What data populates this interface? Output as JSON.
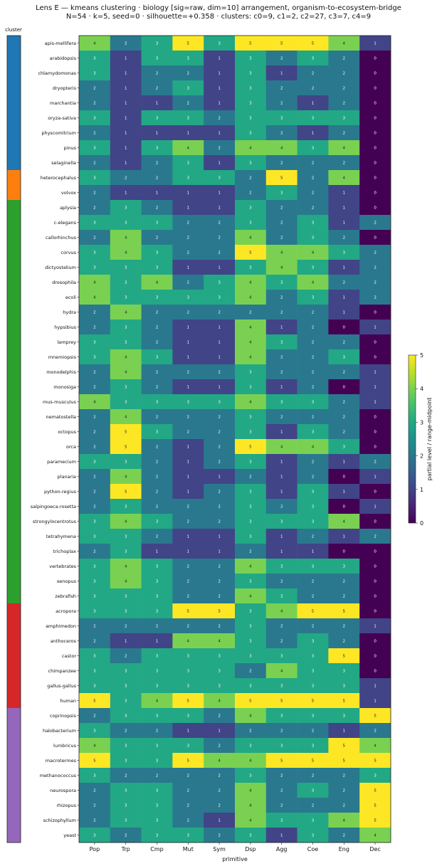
{
  "chart_data": {
    "type": "heatmap",
    "title": "Lens E — kmeans clustering · biology [sig=raw, dim=10] arrangement, organism-to-ecosystem-bridge",
    "subtitle": "N=54 · k=5, seed=0 · silhouette=+0.358 · clusters: c0=9, c1=2, c2=27, c3=7, c4=9",
    "xlabel": "primitive",
    "cluster_label": "cluster",
    "colorbar_label": "partial level / range-midpoint",
    "colorbar_ticks": [
      "0",
      "1",
      "2",
      "3",
      "4",
      "5"
    ],
    "vmin": 0,
    "vmax": 5,
    "colormap": "viridis",
    "columns": [
      "Pop",
      "Trp",
      "Cmp",
      "Mut",
      "Sym",
      "Dsp",
      "Agg",
      "Coe",
      "Eng",
      "Dec"
    ],
    "cluster_colors": [
      "#1f77b4",
      "#ff7f0e",
      "#2ca02c",
      "#d62728",
      "#9467bd"
    ],
    "rows": [
      {
        "name": "apis-mellifera",
        "cluster": 0,
        "values": [
          4,
          2,
          3,
          5,
          3,
          5,
          5,
          5,
          4,
          1
        ]
      },
      {
        "name": "arabidopsis",
        "cluster": 0,
        "values": [
          3,
          1,
          3,
          3,
          1,
          3,
          2,
          3,
          2,
          0
        ]
      },
      {
        "name": "chlamydomonas",
        "cluster": 0,
        "values": [
          3,
          1,
          2,
          2,
          1,
          3,
          1,
          2,
          2,
          0
        ]
      },
      {
        "name": "dryopteris",
        "cluster": 0,
        "values": [
          2,
          1,
          2,
          3,
          1,
          3,
          2,
          2,
          2,
          0
        ]
      },
      {
        "name": "marchantia",
        "cluster": 0,
        "values": [
          2,
          1,
          1,
          2,
          1,
          3,
          2,
          1,
          2,
          0
        ]
      },
      {
        "name": "oryza-sativa",
        "cluster": 0,
        "values": [
          3,
          1,
          3,
          3,
          2,
          3,
          3,
          3,
          3,
          0
        ]
      },
      {
        "name": "physcomitrium",
        "cluster": 0,
        "values": [
          2,
          1,
          1,
          1,
          1,
          3,
          2,
          1,
          2,
          0
        ]
      },
      {
        "name": "pinus",
        "cluster": 0,
        "values": [
          3,
          1,
          3,
          4,
          2,
          4,
          4,
          3,
          4,
          0
        ]
      },
      {
        "name": "selaginella",
        "cluster": 0,
        "values": [
          2,
          1,
          2,
          3,
          1,
          3,
          2,
          2,
          2,
          0
        ]
      },
      {
        "name": "heterocephalus",
        "cluster": 1,
        "values": [
          3,
          2,
          2,
          3,
          3,
          2,
          5,
          2,
          4,
          0
        ]
      },
      {
        "name": "volvox",
        "cluster": 1,
        "values": [
          2,
          1,
          1,
          1,
          1,
          2,
          3,
          2,
          1,
          0
        ]
      },
      {
        "name": "aplysia",
        "cluster": 2,
        "values": [
          2,
          3,
          2,
          1,
          1,
          3,
          2,
          2,
          1,
          0
        ]
      },
      {
        "name": "c-elegans",
        "cluster": 2,
        "values": [
          3,
          3,
          3,
          2,
          2,
          3,
          2,
          3,
          1,
          2
        ]
      },
      {
        "name": "callorhinchus",
        "cluster": 2,
        "values": [
          2,
          4,
          2,
          2,
          2,
          4,
          2,
          3,
          2,
          0
        ]
      },
      {
        "name": "corvus",
        "cluster": 2,
        "values": [
          3,
          4,
          3,
          2,
          2,
          5,
          4,
          4,
          3,
          2
        ]
      },
      {
        "name": "dictyostelium",
        "cluster": 2,
        "values": [
          3,
          3,
          3,
          1,
          1,
          3,
          4,
          3,
          1,
          2
        ]
      },
      {
        "name": "drosophila",
        "cluster": 2,
        "values": [
          4,
          3,
          4,
          2,
          3,
          4,
          3,
          4,
          2,
          2
        ]
      },
      {
        "name": "ecoli",
        "cluster": 2,
        "values": [
          4,
          3,
          3,
          3,
          3,
          4,
          2,
          3,
          1,
          2
        ]
      },
      {
        "name": "hydra",
        "cluster": 2,
        "values": [
          2,
          4,
          2,
          2,
          2,
          2,
          2,
          2,
          1,
          0
        ]
      },
      {
        "name": "hypsibius",
        "cluster": 2,
        "values": [
          2,
          3,
          2,
          1,
          1,
          4,
          1,
          2,
          0,
          1
        ]
      },
      {
        "name": "lamprey",
        "cluster": 2,
        "values": [
          3,
          3,
          2,
          1,
          1,
          4,
          3,
          2,
          2,
          0
        ]
      },
      {
        "name": "mnemiopsis",
        "cluster": 2,
        "values": [
          3,
          4,
          3,
          1,
          1,
          4,
          2,
          2,
          3,
          0
        ]
      },
      {
        "name": "monodelphis",
        "cluster": 2,
        "values": [
          2,
          4,
          2,
          2,
          2,
          3,
          2,
          2,
          2,
          1
        ]
      },
      {
        "name": "monosiga",
        "cluster": 2,
        "values": [
          2,
          3,
          2,
          1,
          1,
          3,
          1,
          2,
          0,
          1
        ]
      },
      {
        "name": "mus-musculus",
        "cluster": 2,
        "values": [
          4,
          3,
          3,
          3,
          3,
          4,
          3,
          3,
          2,
          1
        ]
      },
      {
        "name": "nematostella",
        "cluster": 2,
        "values": [
          2,
          4,
          2,
          2,
          2,
          3,
          2,
          2,
          2,
          0
        ]
      },
      {
        "name": "octopus",
        "cluster": 2,
        "values": [
          2,
          5,
          3,
          2,
          2,
          3,
          1,
          3,
          2,
          0
        ]
      },
      {
        "name": "orca",
        "cluster": 2,
        "values": [
          2,
          5,
          2,
          1,
          2,
          5,
          4,
          4,
          3,
          0
        ]
      },
      {
        "name": "paramecium",
        "cluster": 2,
        "values": [
          3,
          3,
          2,
          1,
          2,
          3,
          1,
          2,
          1,
          2
        ]
      },
      {
        "name": "planaria",
        "cluster": 2,
        "values": [
          2,
          4,
          2,
          1,
          1,
          2,
          1,
          2,
          0,
          1
        ]
      },
      {
        "name": "python-regius",
        "cluster": 2,
        "values": [
          2,
          5,
          2,
          1,
          2,
          3,
          1,
          3,
          1,
          0
        ]
      },
      {
        "name": "salpingoeca-rosetta",
        "cluster": 2,
        "values": [
          2,
          3,
          2,
          2,
          2,
          3,
          2,
          3,
          0,
          1
        ]
      },
      {
        "name": "strongylocentrotus",
        "cluster": 2,
        "values": [
          3,
          4,
          3,
          2,
          2,
          3,
          3,
          3,
          4,
          0
        ]
      },
      {
        "name": "tetrahymena",
        "cluster": 2,
        "values": [
          3,
          3,
          2,
          1,
          1,
          3,
          1,
          2,
          1,
          2
        ]
      },
      {
        "name": "trichoplax",
        "cluster": 2,
        "values": [
          2,
          3,
          1,
          1,
          1,
          2,
          1,
          1,
          0,
          0
        ]
      },
      {
        "name": "vertebrates",
        "cluster": 2,
        "values": [
          3,
          4,
          3,
          2,
          2,
          4,
          3,
          3,
          3,
          0
        ]
      },
      {
        "name": "xenopus",
        "cluster": 2,
        "values": [
          3,
          4,
          3,
          2,
          2,
          3,
          2,
          2,
          2,
          0
        ]
      },
      {
        "name": "zebrafish",
        "cluster": 2,
        "values": [
          3,
          3,
          3,
          2,
          2,
          4,
          3,
          2,
          2,
          0
        ]
      },
      {
        "name": "acropora",
        "cluster": 3,
        "values": [
          3,
          3,
          3,
          5,
          5,
          3,
          4,
          5,
          5,
          0
        ]
      },
      {
        "name": "amphimedon",
        "cluster": 3,
        "values": [
          2,
          2,
          2,
          2,
          2,
          3,
          2,
          2,
          2,
          1
        ]
      },
      {
        "name": "anthoceros",
        "cluster": 3,
        "values": [
          2,
          1,
          1,
          4,
          4,
          3,
          2,
          3,
          2,
          0
        ]
      },
      {
        "name": "castor",
        "cluster": 3,
        "values": [
          3,
          2,
          3,
          3,
          3,
          3,
          3,
          3,
          5,
          0
        ]
      },
      {
        "name": "chimpanzee",
        "cluster": 3,
        "values": [
          3,
          3,
          3,
          3,
          3,
          2,
          4,
          3,
          3,
          0
        ]
      },
      {
        "name": "gallus-gallus",
        "cluster": 3,
        "values": [
          3,
          3,
          3,
          3,
          3,
          3,
          3,
          3,
          3,
          1
        ]
      },
      {
        "name": "human",
        "cluster": 3,
        "values": [
          5,
          3,
          4,
          5,
          4,
          5,
          5,
          5,
          5,
          1
        ]
      },
      {
        "name": "coprinopsis",
        "cluster": 4,
        "values": [
          2,
          3,
          3,
          3,
          2,
          4,
          3,
          3,
          3,
          5
        ]
      },
      {
        "name": "halobacterium",
        "cluster": 4,
        "values": [
          3,
          2,
          2,
          1,
          1,
          2,
          2,
          2,
          1,
          2
        ]
      },
      {
        "name": "lumbricus",
        "cluster": 4,
        "values": [
          4,
          3,
          3,
          3,
          2,
          3,
          3,
          3,
          5,
          4
        ]
      },
      {
        "name": "macrotermes",
        "cluster": 4,
        "values": [
          5,
          3,
          3,
          5,
          4,
          4,
          5,
          5,
          5,
          5
        ]
      },
      {
        "name": "methanococcus",
        "cluster": 4,
        "values": [
          3,
          2,
          2,
          2,
          2,
          3,
          2,
          2,
          2,
          3
        ]
      },
      {
        "name": "neurospora",
        "cluster": 4,
        "values": [
          2,
          3,
          3,
          2,
          2,
          4,
          2,
          3,
          2,
          5
        ]
      },
      {
        "name": "rhizopus",
        "cluster": 4,
        "values": [
          2,
          3,
          3,
          2,
          2,
          4,
          2,
          2,
          2,
          5
        ]
      },
      {
        "name": "schizophyllum",
        "cluster": 4,
        "values": [
          2,
          3,
          3,
          2,
          1,
          4,
          3,
          3,
          4,
          5
        ]
      },
      {
        "name": "yeast",
        "cluster": 4,
        "values": [
          3,
          2,
          3,
          3,
          2,
          3,
          1,
          3,
          2,
          4
        ]
      }
    ]
  }
}
